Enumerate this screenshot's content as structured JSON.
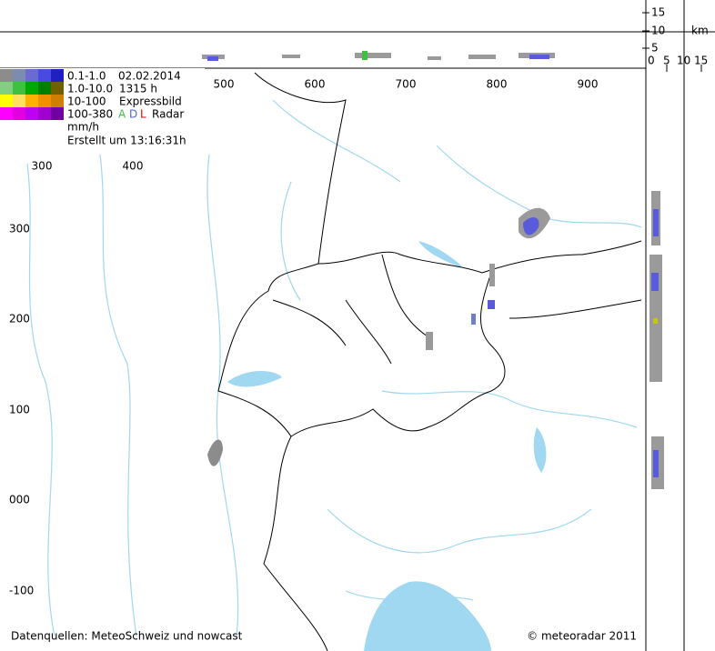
{
  "km_scale": {
    "unit": "km",
    "vertical": [
      "15",
      "10",
      "5",
      "0"
    ],
    "horizontal": [
      "0",
      "5",
      "10",
      "15"
    ]
  },
  "x_labels": [
    "500",
    "600",
    "700",
    "800",
    "900"
  ],
  "x_labels_inset": [
    "300",
    "400"
  ],
  "y_labels": [
    "300",
    "200",
    "100",
    "000",
    "-100"
  ],
  "legend": {
    "rows": [
      "0.1-1.0",
      "1.0-10.0",
      "10-100",
      "100-380"
    ],
    "date": "02.02.2014",
    "time": "1315 h",
    "mode": "Expressbild",
    "radars": [
      "A",
      "D",
      "L"
    ],
    "radar_word": "Radar",
    "unit": "mm/h",
    "created": "Erstellt um 13:16:31h"
  },
  "footer": {
    "sources": "Datenquellen: MeteoSchweiz und nowcast",
    "copyright": "© meteoradar 2011"
  }
}
